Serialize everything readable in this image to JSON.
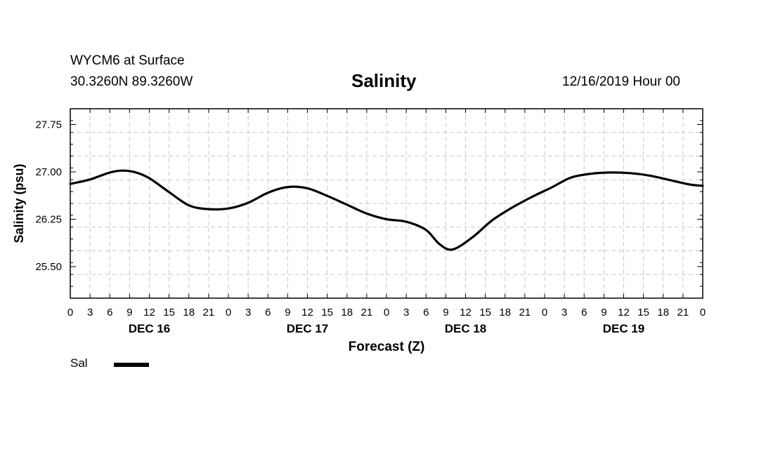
{
  "header": {
    "station": "WYCM6 at Surface",
    "coords": "30.3260N 89.3260W",
    "title": "Salinity",
    "datetime": "12/16/2019 Hour 00"
  },
  "chart_data": {
    "type": "line",
    "title": "Salinity",
    "xlabel": "Forecast (Z)",
    "ylabel": "Salinity (psu)",
    "x_unit": "forecast hours from 12/16/2019 00Z",
    "xlim": [
      0,
      96
    ],
    "ylim": [
      25.0,
      28.0
    ],
    "y_ticks": [
      25.5,
      26.25,
      27.0,
      27.75
    ],
    "y_tick_labels": [
      "25.50",
      "26.25",
      "27.00",
      "27.75"
    ],
    "x_tick_labels": [
      "0",
      "3",
      "6",
      "9",
      "12",
      "15",
      "18",
      "21",
      "0",
      "3",
      "6",
      "9",
      "12",
      "15",
      "18",
      "21",
      "0",
      "3",
      "6",
      "9",
      "12",
      "15",
      "18",
      "21",
      "0",
      "3",
      "6",
      "9",
      "12",
      "15",
      "18",
      "21",
      "0"
    ],
    "day_labels": [
      "DEC 16",
      "DEC 17",
      "DEC 18",
      "DEC 19"
    ],
    "grid": true,
    "legend": {
      "placement": "bottom-left"
    },
    "series": [
      {
        "name": "Sal",
        "color": "#000000",
        "x": [
          0,
          3,
          6,
          8,
          10,
          12,
          15,
          18,
          21,
          24,
          27,
          30,
          33,
          36,
          39,
          42,
          45,
          48,
          51,
          54,
          56,
          58,
          61,
          64,
          67,
          70,
          73,
          76,
          79,
          82,
          85,
          88,
          91,
          94,
          96
        ],
        "y": [
          26.81,
          26.88,
          26.99,
          27.02,
          26.99,
          26.9,
          26.68,
          26.47,
          26.41,
          26.42,
          26.51,
          26.67,
          26.76,
          26.74,
          26.62,
          26.48,
          26.34,
          26.25,
          26.21,
          26.08,
          25.86,
          25.77,
          25.96,
          26.23,
          26.43,
          26.6,
          26.75,
          26.91,
          26.97,
          26.99,
          26.98,
          26.94,
          26.87,
          26.8,
          26.78
        ]
      }
    ]
  },
  "legend_items": [
    {
      "label": "Sal",
      "color": "#000000"
    }
  ]
}
